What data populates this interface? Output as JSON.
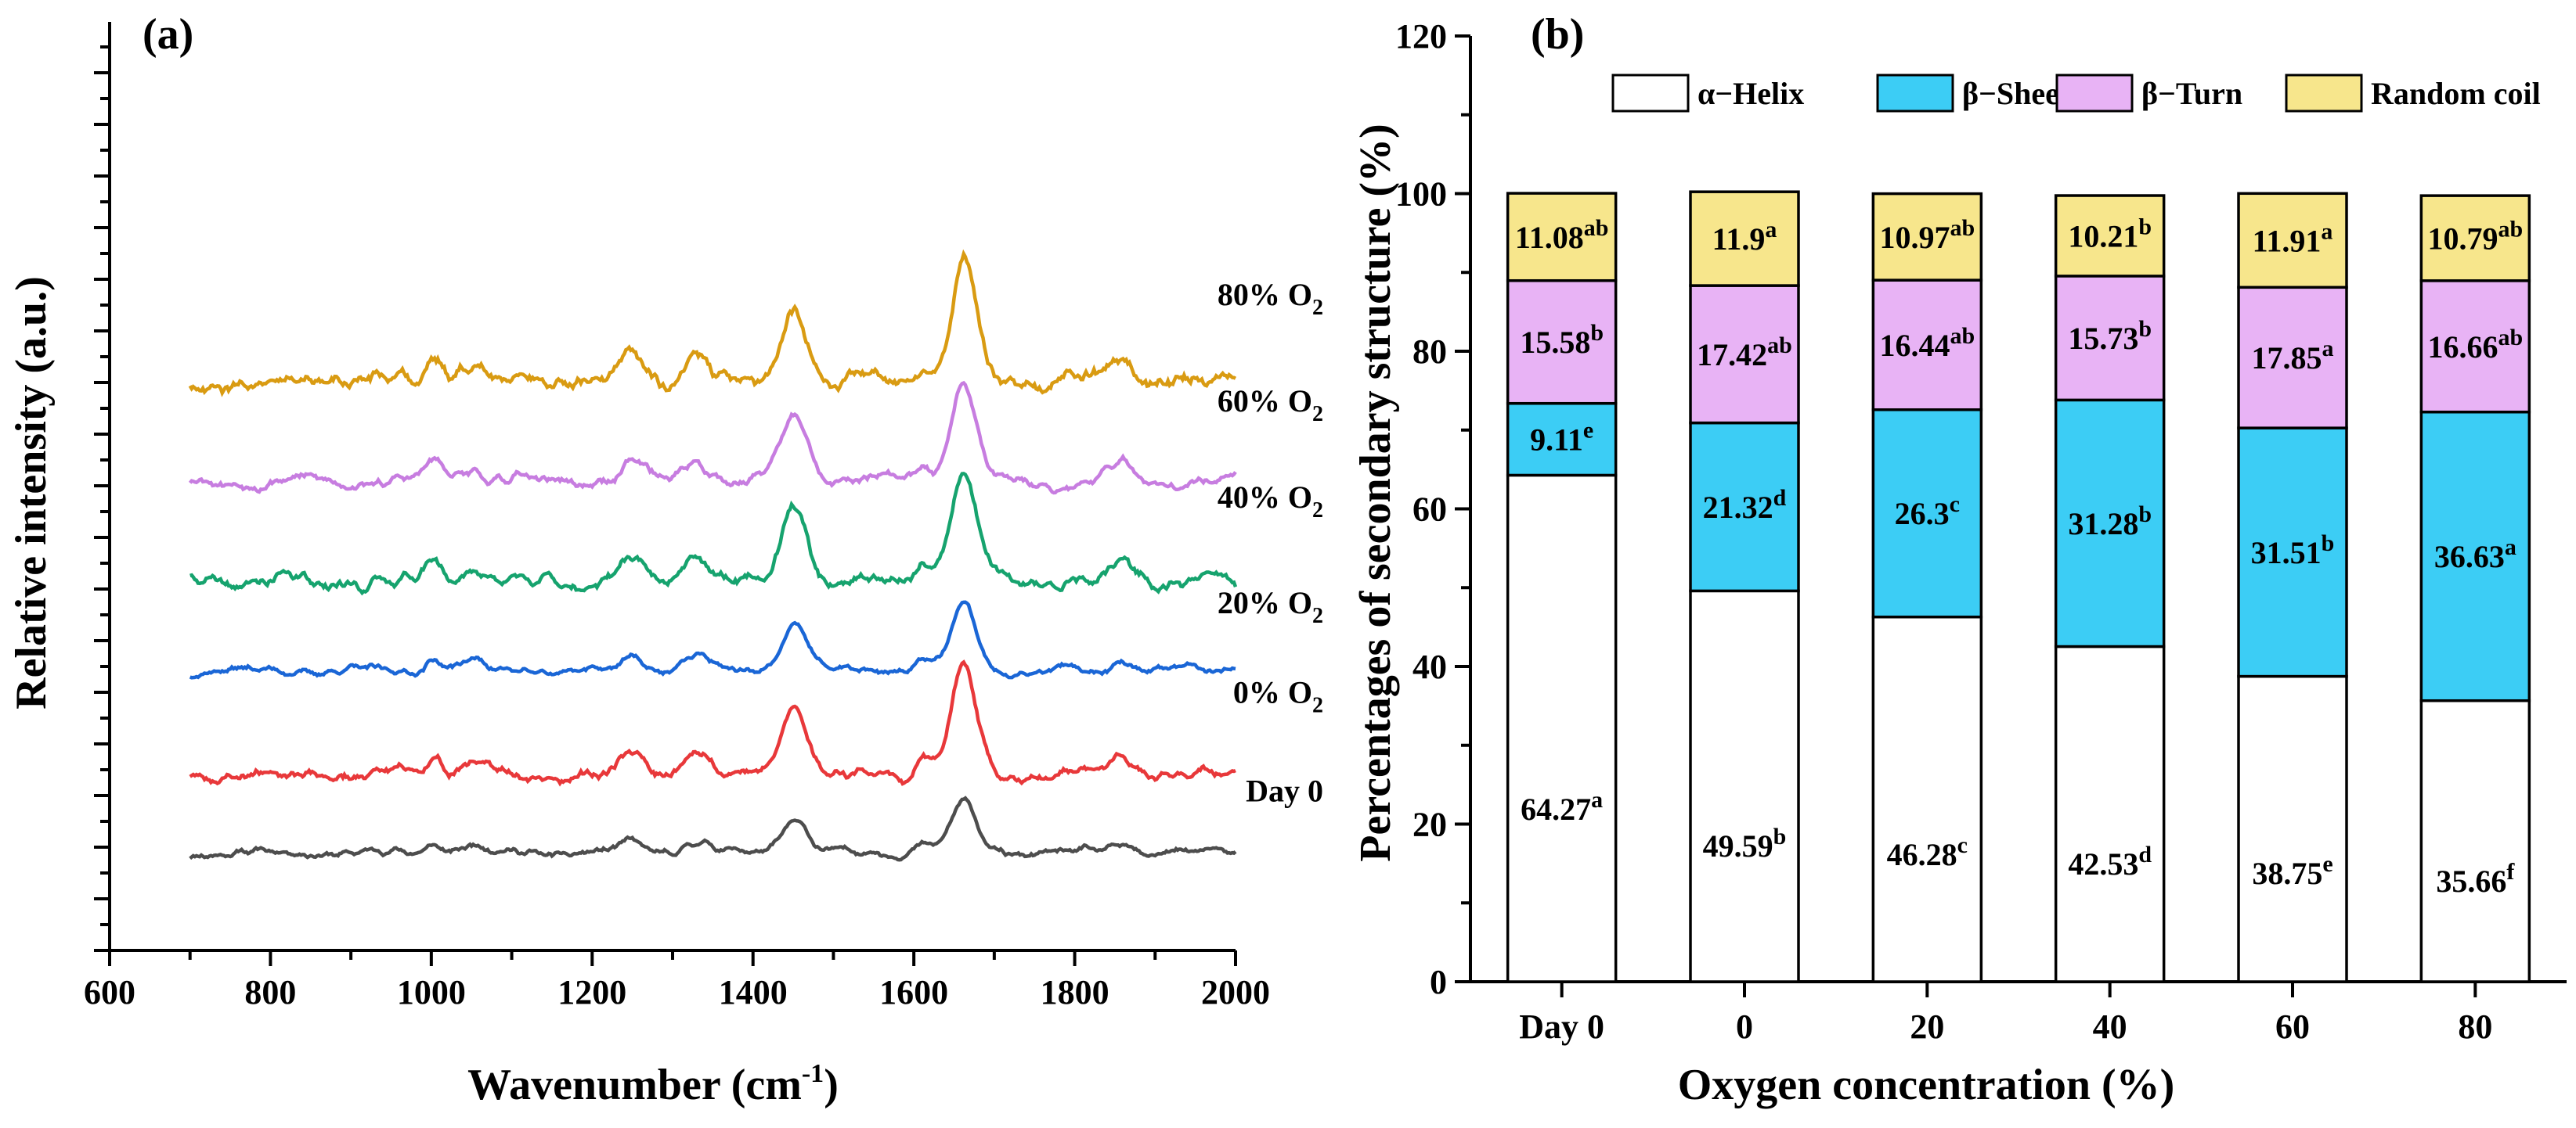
{
  "chart_data": [
    {
      "panel": "(a)",
      "type": "line",
      "xlabel": "Wavenumber (cm",
      "xlabel_sup": "-1",
      "xlabel_end": ")",
      "ylabel": "Relative intensity (a.u.)",
      "xlim": [
        600,
        2000
      ],
      "xticks": [
        "600",
        "800",
        "1000",
        "1200",
        "1400",
        "1600",
        "1800",
        "2000"
      ],
      "x_range": [
        700,
        2000
      ],
      "peaks": [
        {
          "x": 1004,
          "w": 10,
          "h": 0.28
        },
        {
          "x": 1050,
          "w": 14,
          "h": 0.22
        },
        {
          "x": 1250,
          "w": 14,
          "h": 0.3
        },
        {
          "x": 1330,
          "w": 16,
          "h": 0.34
        },
        {
          "x": 1452,
          "w": 16,
          "h": 1.0
        },
        {
          "x": 1612,
          "w": 10,
          "h": 0.28
        },
        {
          "x": 1662,
          "w": 16,
          "h": 1.45
        },
        {
          "x": 1860,
          "w": 14,
          "h": 0.24
        }
      ],
      "series": [
        {
          "name": "Day 0",
          "label": "Day 0",
          "color": "#4d4d4d",
          "offset": 0.0,
          "scale": 0.45,
          "noise": 0.1,
          "seed": 11
        },
        {
          "name": "0% O2",
          "label": "0% O",
          "sub": "2",
          "color": "#e8383a",
          "offset": 1.05,
          "scale": 0.95,
          "noise": 0.15,
          "seed": 23
        },
        {
          "name": "20% O2",
          "label": "20% O",
          "sub": "2",
          "color": "#1a66d6",
          "offset": 2.45,
          "scale": 0.6,
          "noise": 0.1,
          "seed": 37
        },
        {
          "name": "40% O2",
          "label": "40% O",
          "sub": "2",
          "color": "#16a36e",
          "offset": 3.65,
          "scale": 1.0,
          "noise": 0.18,
          "seed": 41
        },
        {
          "name": "60% O2",
          "label": "60% O",
          "sub": "2",
          "color": "#c77de0",
          "offset": 5.0,
          "scale": 0.9,
          "noise": 0.15,
          "seed": 53
        },
        {
          "name": "80% O2",
          "label": "80% O",
          "sub": "2",
          "color": "#d99b12",
          "offset": 6.35,
          "scale": 1.05,
          "noise": 0.22,
          "seed": 67
        }
      ]
    },
    {
      "panel": "(b)",
      "type": "bar",
      "stacked": true,
      "xlabel": "Oxygen concentration (%)",
      "ylabel": "Percentages of secondary structure (%)",
      "ylim": [
        0,
        120
      ],
      "yticks": [
        "0",
        "20",
        "40",
        "60",
        "80",
        "100",
        "120"
      ],
      "categories": [
        "Day 0",
        "0",
        "20",
        "40",
        "60",
        "80"
      ],
      "legend": [
        {
          "name": "α−Helix",
          "color": "#ffffff"
        },
        {
          "name": "β−Sheet",
          "color": "#3ccdf5"
        },
        {
          "name": "β−Turn",
          "color": "#e8b3f5"
        },
        {
          "name": "Random coil",
          "color": "#f7e68c"
        }
      ],
      "series": [
        {
          "name": "α−Helix",
          "color": "#ffffff",
          "values": [
            64.27,
            49.59,
            46.28,
            42.53,
            38.75,
            35.66
          ],
          "labels": [
            "64.27",
            "49.59",
            "46.28",
            "42.53",
            "38.75",
            "35.66"
          ],
          "letters": [
            "a",
            "b",
            "c",
            "d",
            "e",
            "f"
          ]
        },
        {
          "name": "β−Sheet",
          "color": "#3ccdf5",
          "values": [
            9.11,
            21.32,
            26.3,
            31.28,
            31.51,
            36.63
          ],
          "labels": [
            "9.11",
            "21.32",
            "26.3",
            "31.28",
            "31.51",
            "36.63"
          ],
          "letters": [
            "e",
            "d",
            "c",
            "b",
            "b",
            "a"
          ]
        },
        {
          "name": "β−Turn",
          "color": "#e8b3f5",
          "values": [
            15.58,
            17.42,
            16.44,
            15.73,
            17.85,
            16.66
          ],
          "labels": [
            "15.58",
            "17.42",
            "16.44",
            "15.73",
            "17.85",
            "16.66"
          ],
          "letters": [
            "b",
            "ab",
            "ab",
            "b",
            "a",
            "ab"
          ]
        },
        {
          "name": "Random coil",
          "color": "#f7e68c",
          "values": [
            11.08,
            11.9,
            10.97,
            10.21,
            11.91,
            10.79
          ],
          "labels": [
            "11.08",
            "11.9",
            "10.97",
            "10.21",
            "11.91",
            "10.79"
          ],
          "letters": [
            "ab",
            "a",
            "ab",
            "b",
            "a",
            "ab"
          ]
        }
      ]
    }
  ]
}
